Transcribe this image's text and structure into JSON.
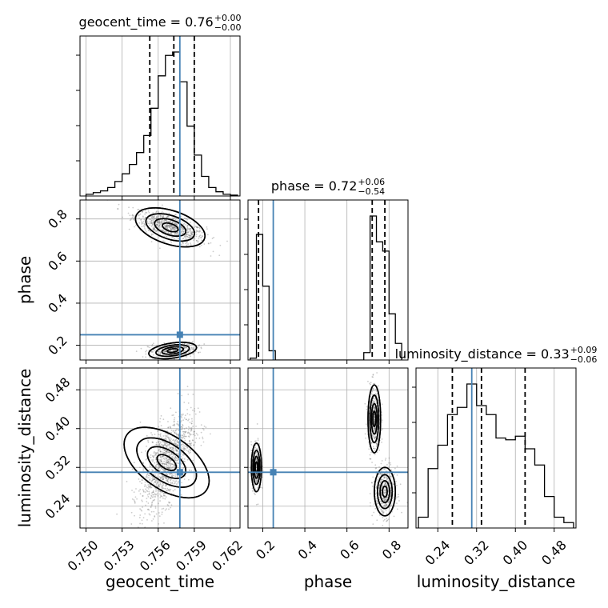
{
  "chart_data": {
    "type": "corner",
    "parameters": [
      "geocent_time",
      "phase",
      "luminosity_distance"
    ],
    "truths": {
      "geocent_time": 0.7578,
      "phase": 0.25,
      "luminosity_distance": 0.31
    },
    "titles": [
      {
        "name": "geocent_time",
        "text": "geocent_time = 0.76",
        "upper": "+0.00",
        "lower": "−0.00"
      },
      {
        "name": "phase",
        "text": "phase = 0.72",
        "upper": "+0.06",
        "lower": "−0.54"
      },
      {
        "name": "luminosity_distance",
        "text": "luminosity_distance = 0.33",
        "upper": "+0.09",
        "lower": "−0.06"
      }
    ],
    "axes": {
      "geocent_time": {
        "range": [
          0.7495,
          0.7628
        ],
        "ticks": [
          "0.750",
          "0.753",
          "0.756",
          "0.759",
          "0.762"
        ]
      },
      "phase": {
        "range": [
          0.13,
          0.89
        ],
        "ticks": [
          "0.2",
          "0.4",
          "0.6",
          "0.8"
        ]
      },
      "luminosity_distance": {
        "range": [
          0.195,
          0.525
        ],
        "ticks": [
          "0.24",
          "0.32",
          "0.40",
          "0.48"
        ]
      }
    },
    "quantiles": {
      "geocent_time": [
        0.7553,
        0.7573,
        0.759
      ],
      "phase": [
        0.18,
        0.72,
        0.78
      ],
      "luminosity_distance": [
        0.27,
        0.33,
        0.42
      ]
    },
    "histograms": {
      "geocent_time": {
        "edges": [
          0.75,
          0.7506,
          0.7512,
          0.7518,
          0.7524,
          0.753,
          0.7536,
          0.7542,
          0.7548,
          0.7554,
          0.756,
          0.7566,
          0.7572,
          0.7578,
          0.7584,
          0.759,
          0.7596,
          0.7602,
          0.7608,
          0.7614,
          0.762,
          0.7626
        ],
        "counts": [
          2,
          4,
          6,
          10,
          17,
          26,
          37,
          51,
          71,
          103,
          141,
          165,
          169,
          134,
          82,
          48,
          23,
          10,
          5,
          2,
          1
        ]
      },
      "phase": {
        "edges": [
          0.14,
          0.17,
          0.2,
          0.23,
          0.26,
          0.29,
          0.32,
          0.35,
          0.38,
          0.41,
          0.44,
          0.47,
          0.5,
          0.53,
          0.56,
          0.59,
          0.62,
          0.65,
          0.68,
          0.71,
          0.74,
          0.77,
          0.8,
          0.83,
          0.86
        ],
        "counts": [
          2,
          136,
          80,
          10,
          0,
          0,
          0,
          0,
          0,
          0,
          0,
          0,
          0,
          0,
          0,
          0,
          0,
          0,
          8,
          156,
          128,
          118,
          50,
          18
        ]
      },
      "luminosity_distance": {
        "edges": [
          0.2,
          0.22,
          0.24,
          0.26,
          0.28,
          0.3,
          0.32,
          0.34,
          0.36,
          0.38,
          0.4,
          0.42,
          0.44,
          0.46,
          0.48,
          0.5,
          0.52
        ],
        "counts": [
          12,
          66,
          92,
          126,
          134,
          160,
          136,
          126,
          100,
          98,
          102,
          88,
          70,
          35,
          12,
          6
        ]
      }
    }
  }
}
